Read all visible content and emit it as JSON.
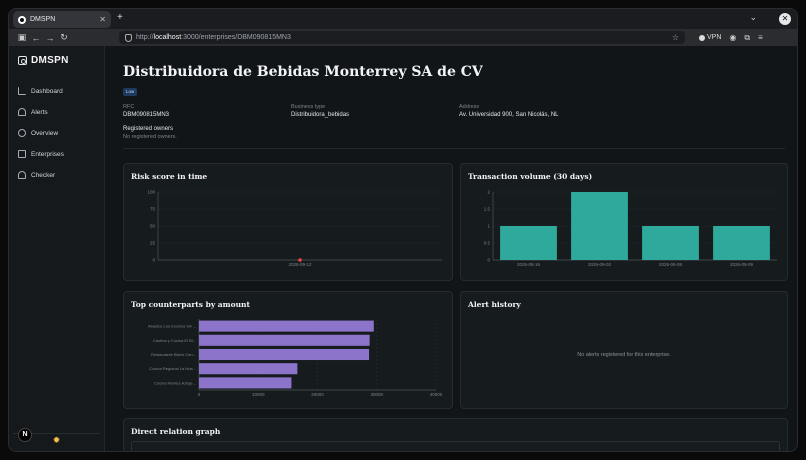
{
  "browser": {
    "tab_title": "DMSPN",
    "url_prefix": "http://",
    "url_host": "localhost",
    "url_path": ":3000/enterprises/DBM090815MN3",
    "vpn_label": "VPN"
  },
  "sidebar": {
    "brand": "DMSPN",
    "items": [
      {
        "label": "Dashboard",
        "icon": "chart-line-icon"
      },
      {
        "label": "Alerts",
        "icon": "bell-icon"
      },
      {
        "label": "Overview",
        "icon": "hexagon-icon"
      },
      {
        "label": "Enterprises",
        "icon": "building-icon"
      },
      {
        "label": "Checker",
        "icon": "shield-check-icon"
      }
    ],
    "n_badge": "N"
  },
  "enterprise": {
    "name": "Distribuidora de Bebidas Monterrey SA de CV",
    "risk_badge": "Low",
    "rfc_label": "RFC",
    "rfc": "DBM090815MN3",
    "business_type_label": "Business type",
    "business_type": "Distribuidora_bebidas",
    "address_label": "Address",
    "address": "Av. Universidad 900, San Nicolás, NL",
    "owners_label": "Registered owners",
    "owners_empty": "No registered owners."
  },
  "cards": {
    "risk_title": "Risk score in time",
    "volume_title": "Transaction volume (30 days)",
    "counterparts_title": "Top counterparts by amount",
    "alerts_title": "Alert history",
    "alerts_empty": "No alerts registered for this enterprise.",
    "graph_title": "Direct relation graph"
  },
  "chart_data": [
    {
      "type": "scatter",
      "title": "Risk score in time",
      "x": [
        "2026-09-12"
      ],
      "values": [
        0
      ],
      "ylim": [
        0,
        100
      ],
      "yticks": [
        0,
        25,
        50,
        75,
        100
      ],
      "color": "#ef4444",
      "grid": true
    },
    {
      "type": "bar",
      "title": "Transaction volume (30 days)",
      "categories": [
        "2026-08-16",
        "2026-09-02",
        "2026-09-08",
        "2026-09-09"
      ],
      "values": [
        1,
        2,
        1,
        1
      ],
      "ylim": [
        0,
        2
      ],
      "yticks": [
        "0",
        "0.5",
        "1",
        "1.5",
        "2"
      ],
      "color": "#2ea99b",
      "grid": true
    },
    {
      "type": "bar",
      "orientation": "horizontal",
      "title": "Top counterparts by amount",
      "categories": [
        "Abastos Los Encinos SA ...",
        "Cantina y Cocina El Bi...",
        "Restaurante Bistró Cen...",
        "Cocina Regional La Hua...",
        "Cocina Montes Azteje..."
      ],
      "values": [
        29500,
        28800,
        28700,
        16600,
        15600
      ],
      "xlim": [
        0,
        40000
      ],
      "xticks": [
        "0",
        "10000",
        "20000",
        "30000",
        "40000"
      ],
      "color": "#8b74c9",
      "grid": true
    }
  ]
}
